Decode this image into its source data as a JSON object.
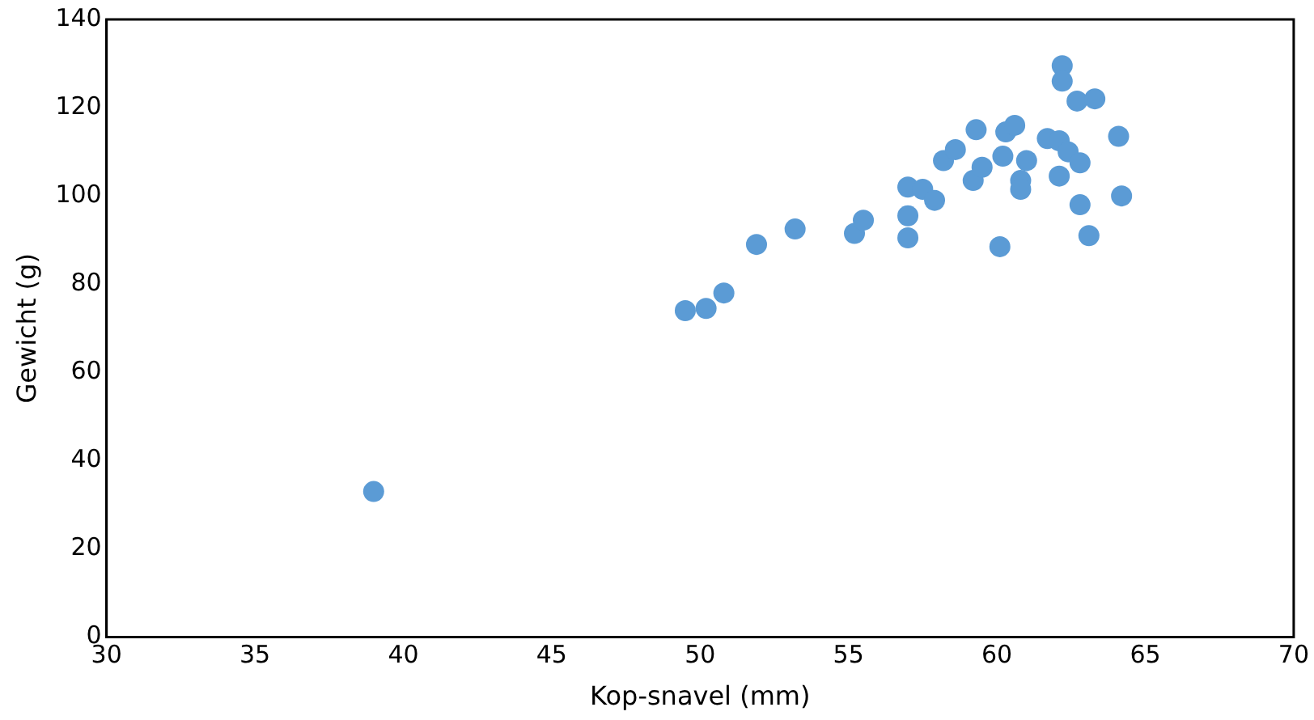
{
  "chart_data": {
    "type": "scatter",
    "xlabel": "Kop-snavel (mm)",
    "ylabel": "Gewicht (g)",
    "xlim": [
      30,
      70
    ],
    "xticks": [
      30,
      35,
      40,
      45,
      50,
      55,
      60,
      65,
      70
    ],
    "ylim": [
      0,
      140
    ],
    "yticks": [
      0,
      20,
      40,
      60,
      80,
      100,
      120,
      140
    ],
    "grid": false,
    "legend": false,
    "marker": "circle",
    "series": [
      {
        "color": "#5b9bd5",
        "x": [
          39.0,
          49.5,
          50.2,
          50.8,
          51.9,
          53.2,
          55.2,
          55.5,
          57.0,
          57.0,
          57.0,
          57.5,
          57.9,
          58.2,
          58.6,
          59.2,
          59.3,
          59.5,
          60.1,
          60.2,
          60.3,
          60.6,
          60.8,
          60.8,
          61.0,
          61.7,
          62.1,
          62.1,
          62.2,
          62.2,
          62.4,
          62.8,
          62.7,
          62.8,
          63.1,
          63.3,
          64.1,
          64.2
        ],
        "values": [
          33,
          74,
          74.5,
          78,
          89,
          92.5,
          91.5,
          94.5,
          102,
          95.5,
          90.5,
          101.5,
          99,
          108,
          110.5,
          103.5,
          115,
          106.5,
          88.5,
          109,
          114.5,
          116,
          103.5,
          101.5,
          108,
          113,
          112.5,
          104.5,
          129.5,
          126,
          110,
          107.5,
          121.5,
          98,
          91,
          122,
          113.5,
          100
        ]
      }
    ]
  }
}
